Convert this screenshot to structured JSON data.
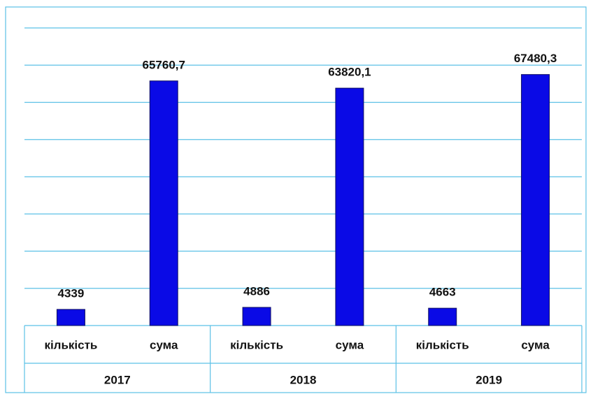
{
  "chart_data": {
    "type": "bar",
    "categories": [
      "кількість",
      "сума",
      "кількість",
      "сума",
      "кількість",
      "сума"
    ],
    "groups": [
      "2017",
      "2018",
      "2019"
    ],
    "values": [
      4339,
      65760.7,
      4886,
      63820.1,
      4663,
      67480.3
    ],
    "value_labels": [
      "4339",
      "65760,7",
      "4886",
      "63820,1",
      "4663",
      "67480,3"
    ],
    "color": "#0a0ae6",
    "ylim": [
      0,
      80000
    ],
    "yticks": [
      0,
      10000,
      20000,
      30000,
      40000,
      50000,
      60000,
      70000,
      80000
    ],
    "grid": true
  }
}
